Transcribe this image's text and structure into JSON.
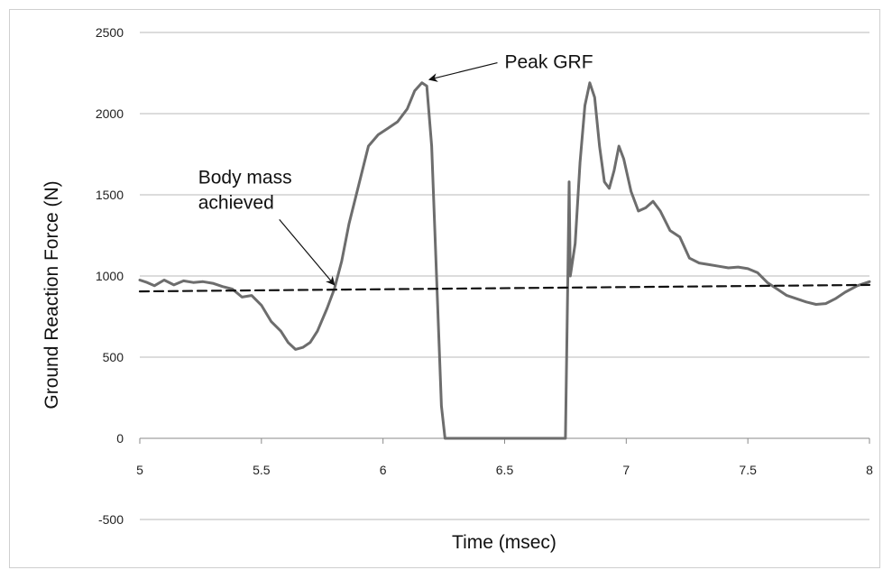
{
  "chart_data": {
    "type": "line",
    "title": "",
    "xlabel": "Time (msec)",
    "ylabel": "Ground Reaction Force (N)",
    "xlim": [
      5,
      8
    ],
    "ylim": [
      -500,
      2500
    ],
    "x_ticks": [
      5,
      5.5,
      6,
      6.5,
      7,
      7.5,
      8
    ],
    "x_tick_labels": [
      "5",
      "5.5",
      "6",
      "6.5",
      "7",
      "7.5",
      "8"
    ],
    "y_ticks": [
      -500,
      0,
      500,
      1000,
      1500,
      2000,
      2500
    ],
    "y_tick_labels": [
      "-500",
      "0",
      "500",
      "1000",
      "1500",
      "2000",
      "2500"
    ],
    "grid": "horizontal",
    "legend": "none",
    "series": [
      {
        "color": "#6d6d6d",
        "style": "solid",
        "points": [
          [
            5.0,
            975
          ],
          [
            5.03,
            960
          ],
          [
            5.06,
            940
          ],
          [
            5.1,
            975
          ],
          [
            5.14,
            945
          ],
          [
            5.18,
            970
          ],
          [
            5.22,
            960
          ],
          [
            5.26,
            965
          ],
          [
            5.3,
            955
          ],
          [
            5.34,
            935
          ],
          [
            5.38,
            920
          ],
          [
            5.42,
            870
          ],
          [
            5.46,
            880
          ],
          [
            5.5,
            820
          ],
          [
            5.54,
            720
          ],
          [
            5.58,
            660
          ],
          [
            5.61,
            590
          ],
          [
            5.64,
            548
          ],
          [
            5.67,
            560
          ],
          [
            5.7,
            590
          ],
          [
            5.73,
            660
          ],
          [
            5.77,
            800
          ],
          [
            5.8,
            920
          ],
          [
            5.83,
            1090
          ],
          [
            5.86,
            1320
          ],
          [
            5.9,
            1560
          ],
          [
            5.94,
            1800
          ],
          [
            5.98,
            1870
          ],
          [
            6.02,
            1910
          ],
          [
            6.06,
            1950
          ],
          [
            6.1,
            2030
          ],
          [
            6.13,
            2140
          ],
          [
            6.16,
            2190
          ],
          [
            6.18,
            2170
          ],
          [
            6.2,
            1800
          ],
          [
            6.22,
            1000
          ],
          [
            6.24,
            200
          ],
          [
            6.255,
            0
          ],
          [
            6.75,
            0
          ],
          [
            6.76,
            1000
          ],
          [
            6.765,
            1580
          ],
          [
            6.77,
            1000
          ],
          [
            6.79,
            1200
          ],
          [
            6.81,
            1700
          ],
          [
            6.83,
            2050
          ],
          [
            6.85,
            2190
          ],
          [
            6.87,
            2100
          ],
          [
            6.89,
            1800
          ],
          [
            6.91,
            1580
          ],
          [
            6.93,
            1540
          ],
          [
            6.95,
            1650
          ],
          [
            6.97,
            1800
          ],
          [
            6.99,
            1720
          ],
          [
            7.02,
            1520
          ],
          [
            7.05,
            1400
          ],
          [
            7.08,
            1420
          ],
          [
            7.11,
            1460
          ],
          [
            7.14,
            1400
          ],
          [
            7.18,
            1280
          ],
          [
            7.22,
            1240
          ],
          [
            7.26,
            1110
          ],
          [
            7.3,
            1080
          ],
          [
            7.34,
            1070
          ],
          [
            7.38,
            1060
          ],
          [
            7.42,
            1050
          ],
          [
            7.46,
            1055
          ],
          [
            7.5,
            1045
          ],
          [
            7.54,
            1020
          ],
          [
            7.58,
            960
          ],
          [
            7.62,
            920
          ],
          [
            7.66,
            880
          ],
          [
            7.7,
            860
          ],
          [
            7.74,
            840
          ],
          [
            7.78,
            825
          ],
          [
            7.82,
            830
          ],
          [
            7.86,
            860
          ],
          [
            7.9,
            900
          ],
          [
            7.95,
            940
          ],
          [
            8.0,
            965
          ]
        ]
      },
      {
        "color": "#111111",
        "style": "dashed",
        "points": [
          [
            5.0,
            905
          ],
          [
            8.0,
            945
          ]
        ]
      }
    ],
    "annotations": [
      {
        "text": "Peak GRF",
        "lines": [
          "Peak GRF"
        ],
        "text_at": [
          6.5,
          2280
        ],
        "arrow_to": [
          6.19,
          2210
        ]
      },
      {
        "text": "Body mass achieved",
        "lines": [
          "Body mass",
          "achieved"
        ],
        "text_at": [
          5.24,
          1570
        ],
        "arrow_to": [
          5.8,
          945
        ]
      }
    ]
  }
}
